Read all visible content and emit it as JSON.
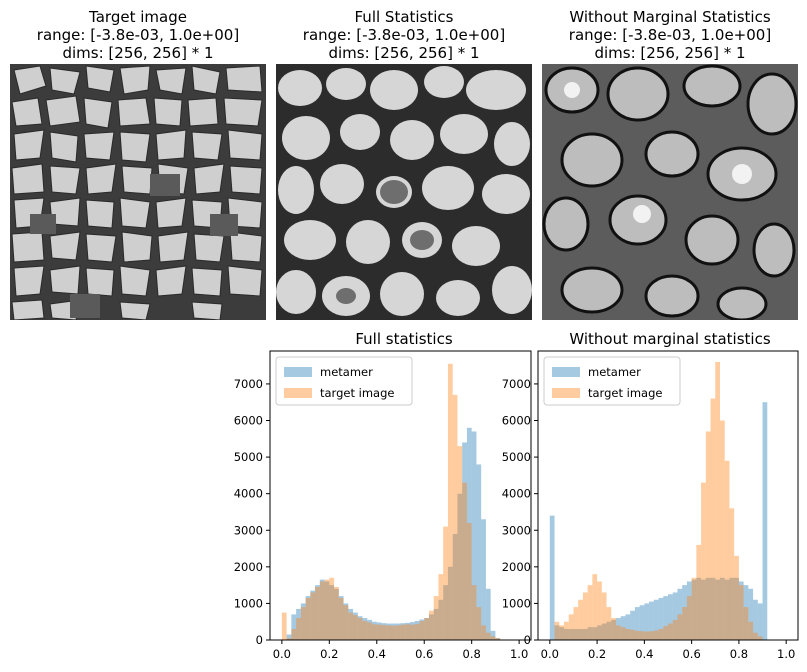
{
  "images": [
    {
      "title_lines": [
        "Target image",
        "range: [-3.8e-03, 1.0e+00]",
        "dims: [256, 256] * 1"
      ]
    },
    {
      "title_lines": [
        "Full Statistics",
        "range: [-3.8e-03, 1.0e+00]",
        "dims: [256, 256] * 1"
      ]
    },
    {
      "title_lines": [
        "Without Marginal Statistics",
        "range: [-3.8e-03, 1.0e+00]",
        "dims: [256, 256] * 1"
      ]
    }
  ],
  "chart_data": [
    {
      "type": "bar",
      "title": "Full statistics",
      "xlabel": "",
      "ylabel": "",
      "xlim": [
        -0.05,
        1.05
      ],
      "ylim": [
        0,
        7900
      ],
      "xticks": [
        "0.0",
        "0.2",
        "0.4",
        "0.6",
        "0.8",
        "1.0"
      ],
      "yticks": [
        "0",
        "1000",
        "2000",
        "3000",
        "4000",
        "5000",
        "6000",
        "7000"
      ],
      "legend": {
        "placement": "top-left"
      },
      "bin_start": 0.0,
      "bin_width": 0.02,
      "series": [
        {
          "name": "metamer",
          "color": "#1f77b4",
          "values": [
            0,
            150,
            700,
            850,
            1000,
            1200,
            1350,
            1500,
            1650,
            1600,
            1500,
            1400,
            1200,
            1000,
            850,
            750,
            650,
            600,
            550,
            500,
            480,
            460,
            450,
            450,
            450,
            460,
            470,
            490,
            520,
            560,
            600,
            700,
            850,
            1100,
            1500,
            2000,
            2900,
            4000,
            5400,
            5800,
            5700,
            4800,
            3300,
            1400,
            250,
            50
          ]
        },
        {
          "name": "target image",
          "color": "#ff7f0e",
          "values": [
            750,
            50,
            300,
            600,
            900,
            1150,
            1300,
            1450,
            1600,
            1650,
            1700,
            1450,
            1150,
            950,
            750,
            680,
            600,
            520,
            480,
            430,
            420,
            410,
            400,
            390,
            400,
            420,
            430,
            420,
            440,
            520,
            600,
            800,
            1200,
            1800,
            3100,
            7550,
            6700,
            5300,
            4300,
            3200,
            1500,
            900,
            400,
            200,
            100,
            50
          ]
        }
      ]
    },
    {
      "type": "bar",
      "title": "Without marginal statistics",
      "xlabel": "",
      "ylabel": "",
      "xlim": [
        -0.05,
        1.05
      ],
      "ylim": [
        0,
        7900
      ],
      "xticks": [
        "0.0",
        "0.2",
        "0.4",
        "0.6",
        "0.8",
        "1.0"
      ],
      "yticks": [
        "0",
        "1000",
        "2000",
        "3000",
        "4000",
        "5000",
        "6000",
        "7000"
      ],
      "legend": {
        "placement": "top-left"
      },
      "bin_start": 0.0,
      "bin_width": 0.02,
      "series": [
        {
          "name": "metamer",
          "color": "#1f77b4",
          "values": [
            3400,
            400,
            350,
            300,
            300,
            300,
            300,
            300,
            350,
            350,
            400,
            450,
            500,
            550,
            600,
            650,
            700,
            800,
            900,
            950,
            1000,
            1050,
            1100,
            1150,
            1200,
            1250,
            1300,
            1400,
            1500,
            1600,
            1650,
            1700,
            1650,
            1700,
            1700,
            1650,
            1700,
            1650,
            1700,
            1700,
            1600,
            1500,
            1400,
            1100,
            1000,
            6500
          ]
        },
        {
          "name": "target image",
          "color": "#ff7f0e",
          "values": [
            0,
            500,
            400,
            500,
            700,
            900,
            1100,
            1300,
            1500,
            1800,
            1600,
            1300,
            900,
            600,
            400,
            350,
            300,
            280,
            250,
            240,
            230,
            240,
            260,
            300,
            380,
            450,
            550,
            700,
            900,
            1200,
            1700,
            2600,
            4300,
            5700,
            6600,
            7600,
            6000,
            4900,
            3600,
            2300,
            1500,
            900,
            500,
            200,
            100,
            0
          ]
        }
      ]
    }
  ]
}
